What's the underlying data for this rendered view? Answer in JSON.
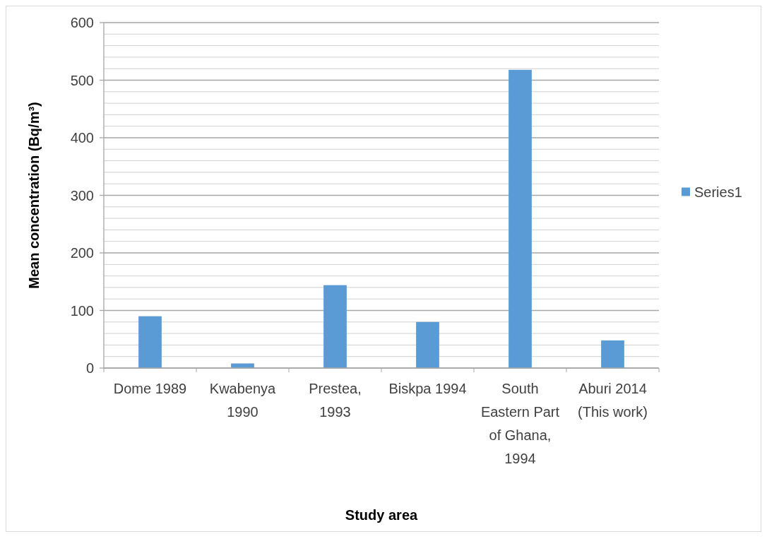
{
  "chart_data": {
    "type": "bar",
    "xlabel": "Study area",
    "ylabel": "Mean concentration (Bq/m³)",
    "categories": [
      "Dome 1989",
      "Kwabenya 1990",
      "Prestea, 1993",
      "Biskpa 1994",
      "South Eastern Part of Ghana, 1994",
      "Aburi 2014 (This work)"
    ],
    "series": [
      {
        "name": "Series1",
        "color": "#5b9bd5",
        "values": [
          90,
          8,
          144,
          80,
          518,
          48
        ]
      }
    ],
    "ylim": [
      0,
      600
    ],
    "yticks": [
      0,
      {
        "value": 20,
        "label": null
      },
      {
        "value": 40,
        "label": null
      },
      {
        "value": 60,
        "label": null
      },
      {
        "value": 80,
        "label": null
      },
      100,
      {
        "value": 120,
        "label": null
      },
      {
        "value": 140,
        "label": null
      },
      {
        "value": 160,
        "label": null
      },
      {
        "value": 180,
        "label": null
      },
      200,
      {
        "value": 220,
        "label": null
      },
      {
        "value": 240,
        "label": null
      },
      {
        "value": 260,
        "label": null
      },
      {
        "value": 280,
        "label": null
      },
      300,
      {
        "value": 320,
        "label": null
      },
      {
        "value": 340,
        "label": null
      },
      {
        "value": 360,
        "label": null
      },
      {
        "value": 380,
        "label": null
      },
      400,
      {
        "value": 420,
        "label": null
      },
      {
        "value": 440,
        "label": null
      },
      {
        "value": 460,
        "label": null
      },
      {
        "value": 480,
        "label": null
      },
      500,
      {
        "value": 520,
        "label": null
      },
      {
        "value": 540,
        "label": null
      },
      {
        "value": 560,
        "label": null
      },
      {
        "value": 580,
        "label": null
      },
      600
    ],
    "grid": true,
    "legend": "right"
  }
}
